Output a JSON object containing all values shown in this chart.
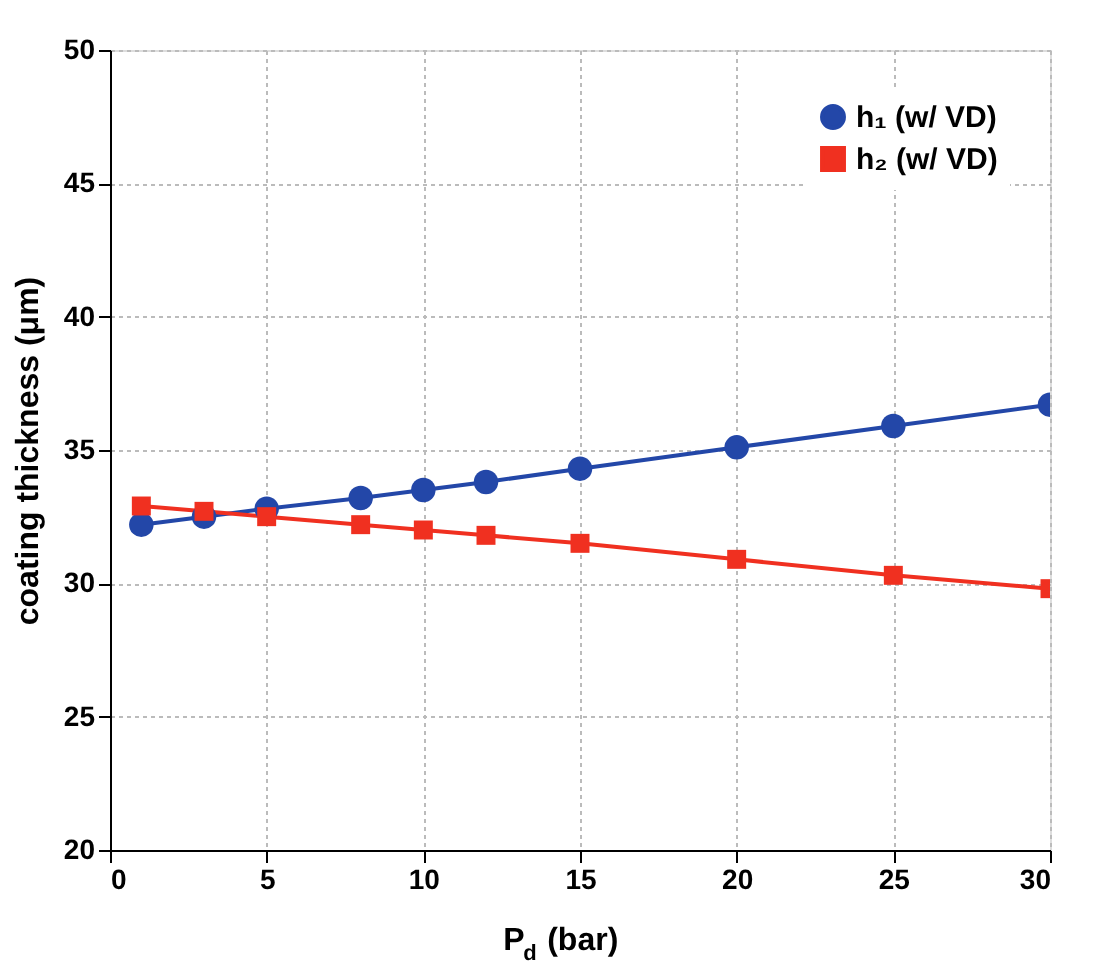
{
  "chart_data": {
    "type": "line",
    "xlabel": "P$_{d}$ (bar)",
    "ylabel": "coating thickness (μm)",
    "x": [
      1,
      3,
      5,
      8,
      10,
      12,
      15,
      20,
      25,
      30
    ],
    "series": [
      {
        "name": "h₁ (w/ VD)",
        "color": "#2347a8",
        "marker": "circle",
        "values": [
          32.2,
          32.5,
          32.8,
          33.2,
          33.5,
          33.8,
          34.3,
          35.1,
          35.9,
          36.7
        ]
      },
      {
        "name": "h₂ (w/ VD)",
        "color": "#f03020",
        "marker": "square",
        "values": [
          32.9,
          32.7,
          32.5,
          32.2,
          32.0,
          31.8,
          31.5,
          30.9,
          30.3,
          29.8
        ]
      }
    ],
    "xlim": [
      0,
      30
    ],
    "xticks": [
      0,
      5,
      10,
      15,
      20,
      25,
      30
    ],
    "ylim": [
      20,
      50
    ],
    "yticks": [
      20,
      25,
      30,
      35,
      40,
      45,
      50
    ],
    "grid": true,
    "legend": "top right",
    "line_style": "solid"
  }
}
